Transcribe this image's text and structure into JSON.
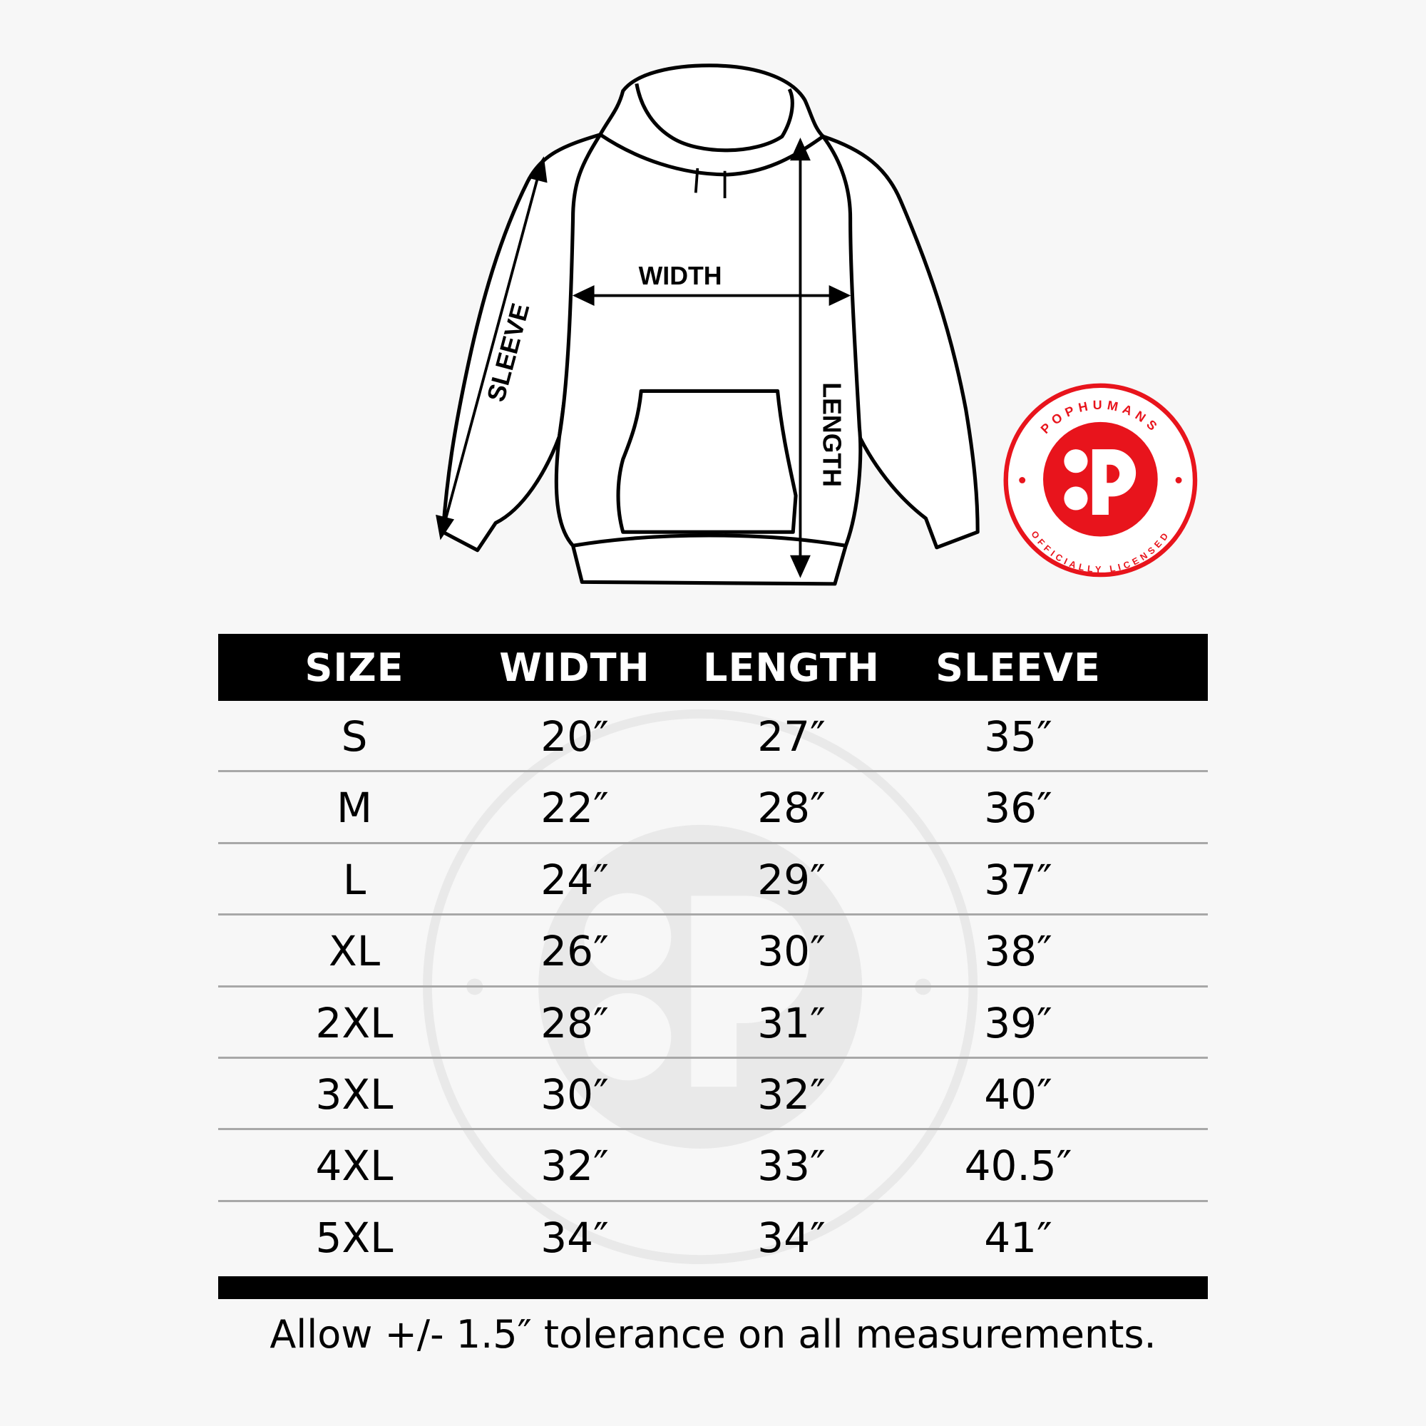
{
  "diagram": {
    "width_label": "WIDTH",
    "length_label": "LENGTH",
    "sleeve_label": "SLEEVE"
  },
  "badge": {
    "top_text": "POPHUMANS",
    "bottom_text": "OFFICIALLY LICENSED",
    "color": "#e8141c"
  },
  "table": {
    "headers": [
      "SIZE",
      "WIDTH",
      "LENGTH",
      "SLEEVE"
    ],
    "rows": [
      [
        "S",
        "20″",
        "27″",
        "35″"
      ],
      [
        "M",
        "22″",
        "28″",
        "36″"
      ],
      [
        "L",
        "24″",
        "29″",
        "37″"
      ],
      [
        "XL",
        "26″",
        "30″",
        "38″"
      ],
      [
        "2XL",
        "28″",
        "31″",
        "39″"
      ],
      [
        "3XL",
        "30″",
        "32″",
        "40″"
      ],
      [
        "4XL",
        "32″",
        "33″",
        "40.5″"
      ],
      [
        "5XL",
        "34″",
        "34″",
        "41″"
      ]
    ]
  },
  "note": "Allow +/- 1.5″ tolerance on all measurements."
}
